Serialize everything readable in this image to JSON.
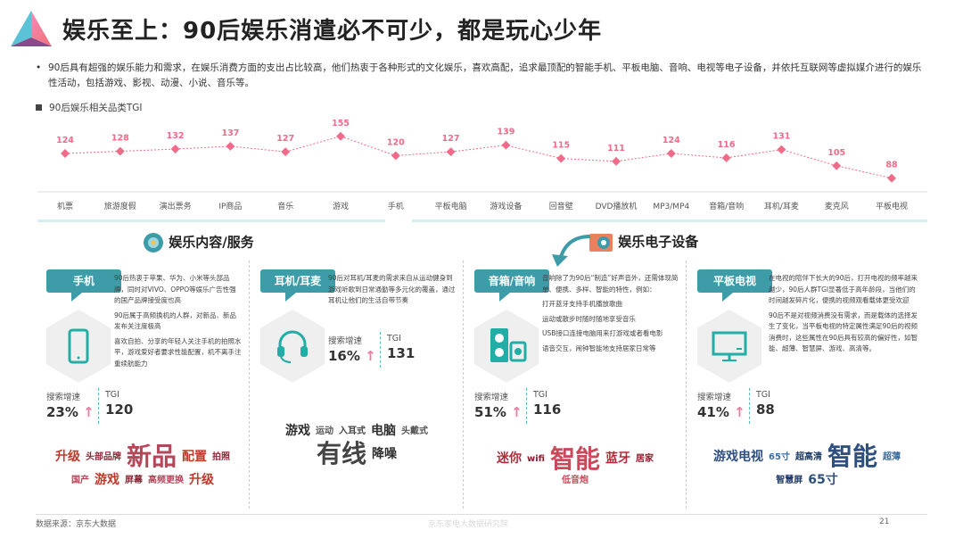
{
  "header": {
    "title": "娱乐至上：90后娱乐消遣必不可少，都是玩心少年"
  },
  "intro": "90后具有超强的娱乐能力和需求，在娱乐消费方面的支出占比较高，他们热衷于各种形式的文化娱乐，喜欢高配，追求最顶配的智能手机、平板电脑、音响、电视等电子设备，并依托互联网等虚拟媒介进行的娱乐性活动，包括游戏、影视、动漫、小说、音乐等。",
  "chart_data": {
    "type": "line",
    "title": "90后娱乐相关品类TGI",
    "categories": [
      "机票",
      "旅游度假",
      "演出票务",
      "IP商品",
      "音乐",
      "游戏",
      "手机",
      "平板电脑",
      "游戏设备",
      "回音壁",
      "DVD播放机",
      "MP3/MP4",
      "音箱/音响",
      "耳机/耳麦",
      "麦克风",
      "平板电视"
    ],
    "values": [
      124,
      128,
      132,
      137,
      127,
      155,
      120,
      127,
      139,
      115,
      111,
      124,
      116,
      131,
      105,
      88
    ],
    "color": "#f06a8a",
    "data_labels": true,
    "grid": false
  },
  "sections": {
    "content": "娱乐内容/服务",
    "devices": "娱乐电子设备"
  },
  "panels": [
    {
      "tag": "手机",
      "icon": "phone-icon",
      "desc": [
        "90后热衷于苹果、华为、小米等头部品牌，同时对VIVO、OPPO等娱乐广告性强的国产品牌接受度也高",
        "90后属于高频换机的人群，对新品、新品发布关注度极高",
        "喜欢自拍、分享的年轻人关注手机的拍照水平，游戏爱好者要求性能配置，机不离手注重续航能力"
      ],
      "growth_label": "搜索增速",
      "growth": "23%",
      "tgi_label": "TGI",
      "tgi": "120",
      "cloud": [
        "升级",
        "头部品牌",
        "新品",
        "配置",
        "拍照",
        "国产",
        "游戏",
        "屏幕",
        "高频更换",
        "升级"
      ]
    },
    {
      "tag": "耳机/耳麦",
      "icon": "headset-icon",
      "desc": [
        "90后对耳机/耳麦的需求来自从运动健身到游戏听歌到日常通勤等多元化的覆盖，通过耳机让他们的生活自带节奏"
      ],
      "growth_label": "搜索增速",
      "growth": "16%",
      "tgi_label": "TGI",
      "tgi": "131",
      "cloud": [
        "游戏",
        "运动",
        "入耳式",
        "电脑",
        "头戴式",
        "有线",
        "降噪"
      ]
    },
    {
      "tag": "音箱/音响",
      "icon": "speaker-icon",
      "desc": [
        "音响除了为90后“制造”好声音外，还需体现简单、便携、多样、智能的特性，例如：",
        "打开蓝牙支持手机播放歌曲",
        "运动或散步时随时随地享受音乐",
        "USB接口连接电脑用来打游戏或者看电影",
        "语音交互，闹钟智能地支持居家日常等"
      ],
      "growth_label": "搜索增速",
      "growth": "51%",
      "tgi_label": "TGI",
      "tgi": "116",
      "cloud": [
        "迷你",
        "wifi",
        "智能",
        "蓝牙",
        "居家",
        "低音炮"
      ]
    },
    {
      "tag": "平板电视",
      "icon": "tv-icon",
      "desc": [
        "在电视的陪伴下长大的90后，打开电视的频率越来越少，90后人群TGI显著低于高年龄段，当他们的时间越发碎片化，便携的视频观看载体更受欢迎",
        "90后不是对视频消费没有需求，而是载体的选择发生了变化，当平板电视的特定属性满足90后的视频消费时，这些属性在90后具有较高的偏好性，如智能、超薄、智慧屏、游戏、高清等。"
      ],
      "growth_label": "搜索增速",
      "growth": "41%",
      "tgi_label": "TGI",
      "tgi": "88",
      "cloud": [
        "游戏电视",
        "65寸",
        "超高清",
        "智能",
        "超薄",
        "智慧屏",
        "65寸"
      ]
    }
  ],
  "footer": {
    "source": "数据来源：京东大数据",
    "page": "21"
  },
  "watermark": "京东家电大数据研究院",
  "colors": {
    "accent": "#3e9ca8",
    "line": "#f06a8a",
    "icon": "#22aea6"
  }
}
